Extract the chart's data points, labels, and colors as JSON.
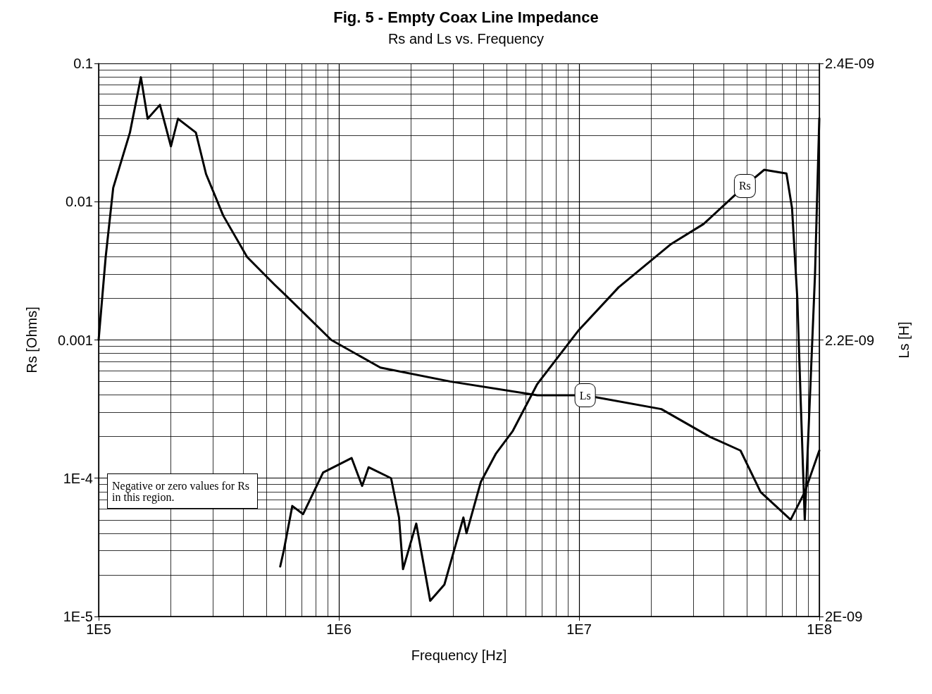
{
  "chart_data": {
    "type": "line",
    "title": "Fig. 5 - Empty Coax Line Impedance",
    "subtitle": "Rs and Ls vs. Frequency",
    "xlabel": "Frequency [Hz]",
    "ylabel": "Rs [Ohms]",
    "y2label": "Ls [H]",
    "log": "xy",
    "grid": true,
    "legend": false,
    "marker": "none",
    "line_style": "solid",
    "xlim": [
      100000,
      100000000
    ],
    "xticks": [
      {
        "value": 100000,
        "label": "1E5"
      },
      {
        "value": 1000000,
        "label": "1E6"
      },
      {
        "value": 10000000,
        "label": "1E7"
      },
      {
        "value": 100000000,
        "label": "1E8"
      }
    ],
    "ylim": [
      1e-05,
      0.1
    ],
    "yticks": [
      {
        "value": 1e-05,
        "label": "1E-5"
      },
      {
        "value": 0.0001,
        "label": "1E-4"
      },
      0.001,
      0.01,
      0.1
    ],
    "y2lim": [
      2e-09,
      2.4e-09
    ],
    "y2ticks": [
      {
        "value": 2e-09,
        "label": "2E-09"
      },
      {
        "value": 2.2e-09,
        "label": "2.2E-09"
      },
      {
        "value": 2.4e-09,
        "label": "2.4E-09"
      }
    ],
    "annotations": [
      "Negative or zero values for Rs in this region."
    ],
    "series": [
      {
        "name": "Rs",
        "color": "#000000",
        "x": [
          570000,
          590000,
          640000,
          710000,
          860000,
          1130000,
          1250000,
          1330000,
          1650000,
          1780000,
          1850000,
          2100000,
          2400000,
          2750000,
          3300000,
          3400000,
          3900000,
          4500000,
          5300000,
          6700000,
          9900000,
          14600000,
          24000000,
          33000000,
          49000000,
          59000000,
          73000000,
          77000000,
          81000000,
          84000000,
          87000000,
          92000000,
          96000000,
          100000000
        ],
        "values": [
          2.3e-05,
          3e-05,
          6.3e-05,
          5.5e-05,
          0.00011,
          0.00014,
          8.8e-05,
          0.00012,
          0.0001,
          5.2e-05,
          2.2e-05,
          4.7e-05,
          1.3e-05,
          1.7e-05,
          5.2e-05,
          4e-05,
          9.4e-05,
          0.00015,
          0.00022,
          0.00048,
          0.00116,
          0.0024,
          0.0049,
          0.0069,
          0.013,
          0.017,
          0.016,
          0.009,
          0.002,
          0.0003,
          5e-05,
          0.0005,
          0.003,
          0.04
        ]
      },
      {
        "name": "Ls",
        "color": "#000000",
        "axis": "y2",
        "x": [
          100000,
          107000,
          115000,
          135000,
          150000,
          160000,
          180000,
          200000,
          214000,
          254000,
          280000,
          330000,
          415000,
          540000,
          620000,
          930000,
          1490000,
          2900000,
          6700000,
          10600000,
          22000000,
          35000000,
          47000000,
          57000000,
          76000000,
          87000000,
          100000000
        ],
        "values": [
          2.2e-09,
          2.26e-09,
          2.31e-09,
          2.35e-09,
          2.39e-09,
          2.36e-09,
          2.37e-09,
          2.34e-09,
          2.36e-09,
          2.35e-09,
          2.32e-09,
          2.29e-09,
          2.26e-09,
          2.24e-09,
          2.23e-09,
          2.2e-09,
          2.18e-09,
          2.17e-09,
          2.16e-09,
          2.16e-09,
          2.15e-09,
          2.13e-09,
          2.12e-09,
          2.09e-09,
          2.07e-09,
          2.09e-09,
          2.12e-09
        ]
      }
    ]
  }
}
